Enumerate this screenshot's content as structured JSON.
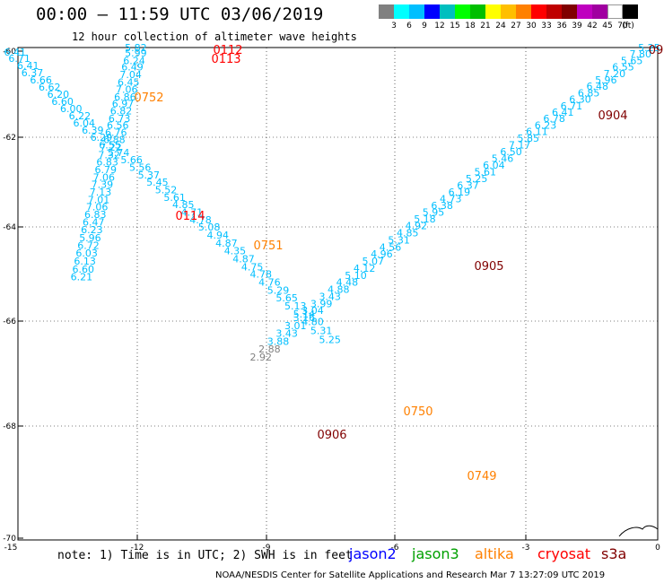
{
  "title": "00:00 – 11:59 UTC 03/06/2019",
  "subtitle": "12 hour collection of altimeter wave heights",
  "scale": {
    "unit": "(ft)",
    "colors": [
      "#808080",
      "#00ffff",
      "#00bfff",
      "#0000ff",
      "#00bfbf",
      "#00ff00",
      "#00bf00",
      "#ffff00",
      "#ffbf00",
      "#ff8000",
      "#ff0000",
      "#bf0000",
      "#800000",
      "#bf00bf",
      "#a000a0",
      "#ffffff",
      "#000000"
    ],
    "labels": [
      "3",
      "6",
      "9",
      "12",
      "15",
      "18",
      "21",
      "24",
      "27",
      "30",
      "33",
      "36",
      "39",
      "42",
      "45",
      "70"
    ]
  },
  "axes": {
    "lat_labels": [
      "-60",
      "-62",
      "-64",
      "-66",
      "-68",
      "-70"
    ],
    "lon_labels": [
      "-15",
      "-12",
      "-9",
      "-6",
      "-3",
      "0"
    ]
  },
  "tracks": [
    {
      "color": "#00bfff",
      "points": [
        {
          "lon": -12.1,
          "lat": -60.0,
          "v": "5.82"
        },
        {
          "lon": -12.1,
          "lat": -60.13,
          "v": "5.99"
        },
        {
          "lon": -12.14,
          "lat": -60.3,
          "v": "6.24"
        },
        {
          "lon": -12.18,
          "lat": -60.45,
          "v": "6.49"
        },
        {
          "lon": -12.22,
          "lat": -60.63,
          "v": "7.04"
        },
        {
          "lon": -12.27,
          "lat": -60.8,
          "v": "6.45"
        },
        {
          "lon": -12.31,
          "lat": -60.97,
          "v": "7.06"
        },
        {
          "lon": -12.35,
          "lat": -61.15,
          "v": "6.86"
        },
        {
          "lon": -12.4,
          "lat": -61.3,
          "v": "6.97"
        },
        {
          "lon": -12.44,
          "lat": -61.47,
          "v": "6.82"
        },
        {
          "lon": -12.48,
          "lat": -61.65,
          "v": "6.73"
        },
        {
          "lon": -12.52,
          "lat": -61.8,
          "v": "6.56"
        },
        {
          "lon": -12.56,
          "lat": -61.97,
          "v": "6.76"
        },
        {
          "lon": -12.6,
          "lat": -62.13,
          "v": "6.88"
        },
        {
          "lon": -12.68,
          "lat": -62.3,
          "v": "7.22"
        },
        {
          "lon": -12.72,
          "lat": -62.47,
          "v": "7.32"
        },
        {
          "lon": -12.76,
          "lat": -62.63,
          "v": "6.83"
        },
        {
          "lon": -12.8,
          "lat": -62.8,
          "v": "6.79"
        },
        {
          "lon": -12.84,
          "lat": -62.97,
          "v": "7.06"
        },
        {
          "lon": -12.88,
          "lat": -63.13,
          "v": "7.39"
        },
        {
          "lon": -12.92,
          "lat": -63.3,
          "v": "7.13"
        },
        {
          "lon": -12.96,
          "lat": -63.47,
          "v": "7.01"
        },
        {
          "lon": -13.0,
          "lat": -63.63,
          "v": "7.06"
        },
        {
          "lon": -13.04,
          "lat": -63.8,
          "v": "6.83"
        },
        {
          "lon": -13.08,
          "lat": -63.97,
          "v": "6.47"
        },
        {
          "lon": -13.12,
          "lat": -64.13,
          "v": "6.23"
        },
        {
          "lon": -13.16,
          "lat": -64.3,
          "v": "5.96"
        },
        {
          "lon": -13.2,
          "lat": -64.47,
          "v": "6.72"
        },
        {
          "lon": -13.24,
          "lat": -64.63,
          "v": "6.03"
        },
        {
          "lon": -13.28,
          "lat": -64.8,
          "v": "6.13"
        },
        {
          "lon": -13.32,
          "lat": -64.97,
          "v": "6.60"
        },
        {
          "lon": -13.36,
          "lat": -65.13,
          "v": "6.21"
        }
      ]
    },
    {
      "color": "#00bfff",
      "points": [
        {
          "lon": -14.9,
          "lat": -60.1,
          "v": "6.41"
        },
        {
          "lon": -14.8,
          "lat": -60.25,
          "v": "6.71"
        },
        {
          "lon": -14.6,
          "lat": -60.42,
          "v": "6.41"
        },
        {
          "lon": -14.5,
          "lat": -60.58,
          "v": "6.37"
        },
        {
          "lon": -14.3,
          "lat": -60.75,
          "v": "6.66"
        },
        {
          "lon": -14.1,
          "lat": -60.92,
          "v": "6.62"
        },
        {
          "lon": -13.9,
          "lat": -61.08,
          "v": "6.20"
        },
        {
          "lon": -13.8,
          "lat": -61.25,
          "v": "6.60"
        },
        {
          "lon": -13.6,
          "lat": -61.42,
          "v": "6.00"
        },
        {
          "lon": -13.4,
          "lat": -61.58,
          "v": "6.22"
        },
        {
          "lon": -13.3,
          "lat": -61.75,
          "v": "6.04"
        },
        {
          "lon": -13.1,
          "lat": -61.92,
          "v": "6.39"
        },
        {
          "lon": -12.9,
          "lat": -62.08,
          "v": "6.29"
        },
        {
          "lon": -12.7,
          "lat": -62.25,
          "v": "6.55"
        },
        {
          "lon": -12.5,
          "lat": -62.42,
          "v": "5.74"
        },
        {
          "lon": -12.2,
          "lat": -62.58,
          "v": "5.66"
        },
        {
          "lon": -12.0,
          "lat": -62.75,
          "v": "5.56"
        },
        {
          "lon": -11.8,
          "lat": -62.92,
          "v": "5.37"
        },
        {
          "lon": -11.6,
          "lat": -63.08,
          "v": "5.45"
        },
        {
          "lon": -11.4,
          "lat": -63.25,
          "v": "5.52"
        },
        {
          "lon": -11.2,
          "lat": -63.42,
          "v": "5.61"
        },
        {
          "lon": -11.0,
          "lat": -63.58,
          "v": "4.85"
        },
        {
          "lon": -10.8,
          "lat": -63.75,
          "v": "4.71"
        },
        {
          "lon": -10.6,
          "lat": -63.92,
          "v": "4.78"
        },
        {
          "lon": -10.4,
          "lat": -64.08,
          "v": "5.08"
        },
        {
          "lon": -10.2,
          "lat": -64.25,
          "v": "4.94"
        },
        {
          "lon": -10.0,
          "lat": -64.42,
          "v": "4.87"
        },
        {
          "lon": -9.8,
          "lat": -64.58,
          "v": "4.35"
        },
        {
          "lon": -9.6,
          "lat": -64.75,
          "v": "4.87"
        },
        {
          "lon": -9.4,
          "lat": -64.92,
          "v": "4.75"
        },
        {
          "lon": -9.2,
          "lat": -65.08,
          "v": "4.78"
        },
        {
          "lon": -9.0,
          "lat": -65.25,
          "v": "4.76"
        },
        {
          "lon": -8.8,
          "lat": -65.42,
          "v": "5.29"
        },
        {
          "lon": -8.6,
          "lat": -65.58,
          "v": "5.65"
        },
        {
          "lon": -8.4,
          "lat": -65.75,
          "v": "5.13"
        },
        {
          "lon": -8.2,
          "lat": -65.92,
          "v": "5.14"
        },
        {
          "lon": -8.0,
          "lat": -66.08,
          "v": "4.80"
        },
        {
          "lon": -7.8,
          "lat": -66.25,
          "v": "5.31"
        },
        {
          "lon": -7.6,
          "lat": -66.42,
          "v": "5.25"
        }
      ]
    },
    {
      "color": "#00bfff",
      "points": [
        {
          "lon": -0.2,
          "lat": -60.0,
          "v": "5.25"
        },
        {
          "lon": -0.4,
          "lat": -60.15,
          "v": "7.80"
        },
        {
          "lon": -0.6,
          "lat": -60.3,
          "v": "5.65"
        },
        {
          "lon": -0.8,
          "lat": -60.45,
          "v": "6.55"
        },
        {
          "lon": -1.0,
          "lat": -60.6,
          "v": "7.20"
        },
        {
          "lon": -1.2,
          "lat": -60.75,
          "v": "5.96"
        },
        {
          "lon": -1.4,
          "lat": -60.9,
          "v": "6.48"
        },
        {
          "lon": -1.6,
          "lat": -61.05,
          "v": "6.85"
        },
        {
          "lon": -1.8,
          "lat": -61.2,
          "v": "6.30"
        },
        {
          "lon": -2.0,
          "lat": -61.35,
          "v": "6.71"
        },
        {
          "lon": -2.2,
          "lat": -61.5,
          "v": "6.41"
        },
        {
          "lon": -2.4,
          "lat": -61.65,
          "v": "6.78"
        },
        {
          "lon": -2.6,
          "lat": -61.8,
          "v": "6.23"
        },
        {
          "lon": -2.8,
          "lat": -61.95,
          "v": "6.11"
        },
        {
          "lon": -3.0,
          "lat": -62.1,
          "v": "5.85"
        },
        {
          "lon": -3.2,
          "lat": -62.25,
          "v": "7.17"
        },
        {
          "lon": -3.4,
          "lat": -62.4,
          "v": "6.50"
        },
        {
          "lon": -3.6,
          "lat": -62.55,
          "v": "5.46"
        },
        {
          "lon": -3.8,
          "lat": -62.7,
          "v": "6.04"
        },
        {
          "lon": -4.0,
          "lat": -62.85,
          "v": "5.61"
        },
        {
          "lon": -4.2,
          "lat": -63.0,
          "v": "5.25"
        },
        {
          "lon": -4.4,
          "lat": -63.15,
          "v": "6.37"
        },
        {
          "lon": -4.6,
          "lat": -63.3,
          "v": "6.19"
        },
        {
          "lon": -4.8,
          "lat": -63.45,
          "v": "4.73"
        },
        {
          "lon": -5.0,
          "lat": -63.6,
          "v": "6.38"
        },
        {
          "lon": -5.2,
          "lat": -63.75,
          "v": "5.95"
        },
        {
          "lon": -5.4,
          "lat": -63.9,
          "v": "5.18"
        },
        {
          "lon": -5.6,
          "lat": -64.05,
          "v": "4.92"
        },
        {
          "lon": -5.8,
          "lat": -64.2,
          "v": "4.85"
        },
        {
          "lon": -6.0,
          "lat": -64.35,
          "v": "5.31"
        },
        {
          "lon": -6.2,
          "lat": -64.5,
          "v": "4.56"
        },
        {
          "lon": -6.4,
          "lat": -64.65,
          "v": "4.96"
        },
        {
          "lon": -6.6,
          "lat": -64.8,
          "v": "5.07"
        },
        {
          "lon": -6.8,
          "lat": -64.95,
          "v": "4.12"
        },
        {
          "lon": -7.0,
          "lat": -65.1,
          "v": "5.10"
        },
        {
          "lon": -7.2,
          "lat": -65.25,
          "v": "4.48"
        },
        {
          "lon": -7.4,
          "lat": -65.4,
          "v": "4.88"
        },
        {
          "lon": -7.6,
          "lat": -65.55,
          "v": "3.43"
        },
        {
          "lon": -7.8,
          "lat": -65.7,
          "v": "3.99"
        },
        {
          "lon": -8.0,
          "lat": -65.85,
          "v": "3.04"
        },
        {
          "lon": -8.2,
          "lat": -66.0,
          "v": "3.16"
        },
        {
          "lon": -8.4,
          "lat": -66.15,
          "v": "3.01"
        },
        {
          "lon": -8.6,
          "lat": -66.3,
          "v": "3.43"
        },
        {
          "lon": -8.8,
          "lat": -66.45,
          "v": "3.88"
        }
      ]
    },
    {
      "color": "#808080",
      "points": [
        {
          "lon": -9.0,
          "lat": -66.6,
          "v": "2.88"
        },
        {
          "lon": -9.2,
          "lat": -66.75,
          "v": "2.92"
        }
      ]
    }
  ],
  "time_labels": [
    {
      "text": "0112",
      "color": "#ff0000"
    },
    {
      "text": "0113",
      "color": "#ff0000"
    },
    {
      "text": "0752",
      "color": "#ff8000"
    },
    {
      "text": "0114",
      "color": "#ff0000"
    },
    {
      "text": "0751",
      "color": "#ff8000"
    },
    {
      "text": "0904",
      "color": "#800000"
    },
    {
      "text": "0905",
      "color": "#800000"
    },
    {
      "text": "0750",
      "color": "#ff8000"
    },
    {
      "text": "0906",
      "color": "#800000"
    },
    {
      "text": "0749",
      "color": "#ff8000"
    },
    {
      "text": "09",
      "color": "#800000"
    }
  ],
  "footer": {
    "note": "note: 1) Time is in UTC; 2) SWH is in feet",
    "satellites": [
      {
        "name": "jason2",
        "color": "#0000ff"
      },
      {
        "name": "jason3",
        "color": "#00a000"
      },
      {
        "name": "altika",
        "color": "#ff8000"
      },
      {
        "name": "cryosat",
        "color": "#ff0000"
      },
      {
        "name": "s3a",
        "color": "#800000"
      }
    ],
    "credit": "NOAA/NESDIS Center for Satellite Applications and Research    Mar  7 13:27:09 UTC 2019"
  }
}
